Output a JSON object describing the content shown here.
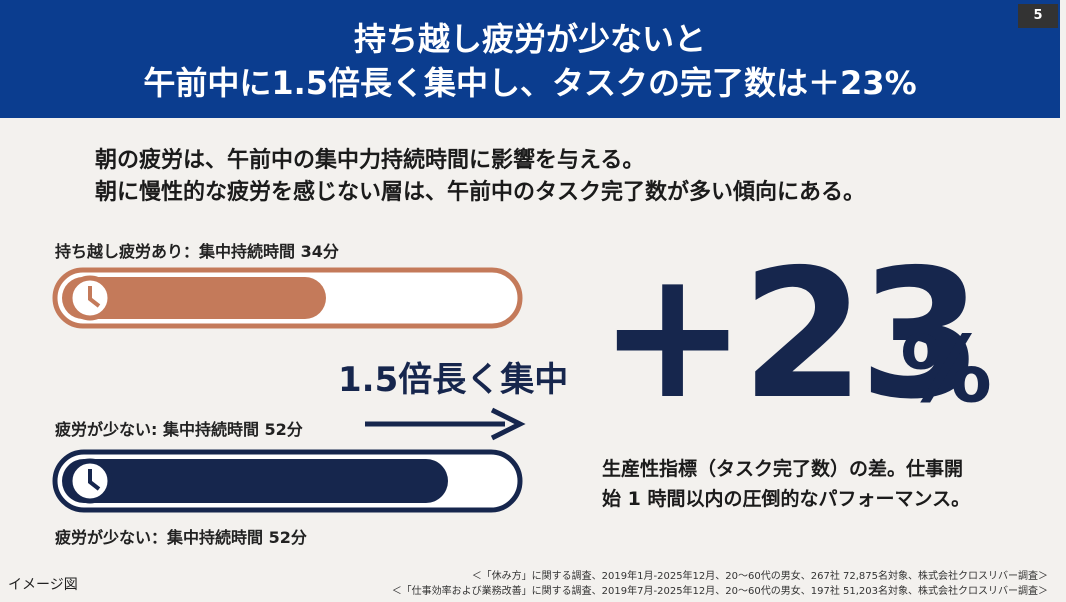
{
  "header": {
    "title_lines": [
      "持ち越し疲労が少ないと",
      "午前中に1.5倍長く集中し、タスクの完了数は＋23%"
    ],
    "page_number": "5"
  },
  "lead": [
    "朝の疲労は、午前中の集中力持続時間に影響を与える。",
    "朝に慢性的な疲労を感じない層は、午前中のタスク完了数が多い傾向にある。"
  ],
  "comparison": {
    "fatigue_label": "持ち越し疲労あり：集中持続時間 34分",
    "callout": "1.5倍長く集中",
    "low_fatigue_label_top": "疲労が少ない: 集中持続時間 52分",
    "low_fatigue_label_bottom": "疲労が少ない：集中持続時間 52分"
  },
  "stat": {
    "number": "+23",
    "unit": "%",
    "description": [
      "生産性指標（タスク完了数）の差。仕事開",
      "始 1 時間以内の圧倒的なパフォーマンス。"
    ]
  },
  "footer": {
    "note": "イメージ図",
    "sources": [
      "＜「休み方」に関する調査、2019年1月-2025年12月、20～60代の男女、267社 72,875名対象、株式会社クロスリバー調査＞",
      "＜「仕事効率および業務改善」に関する調査、2019年7月-2025年12月、20～60代の男女、197社 51,203名対象、株式会社クロスリバー調査＞"
    ]
  }
}
